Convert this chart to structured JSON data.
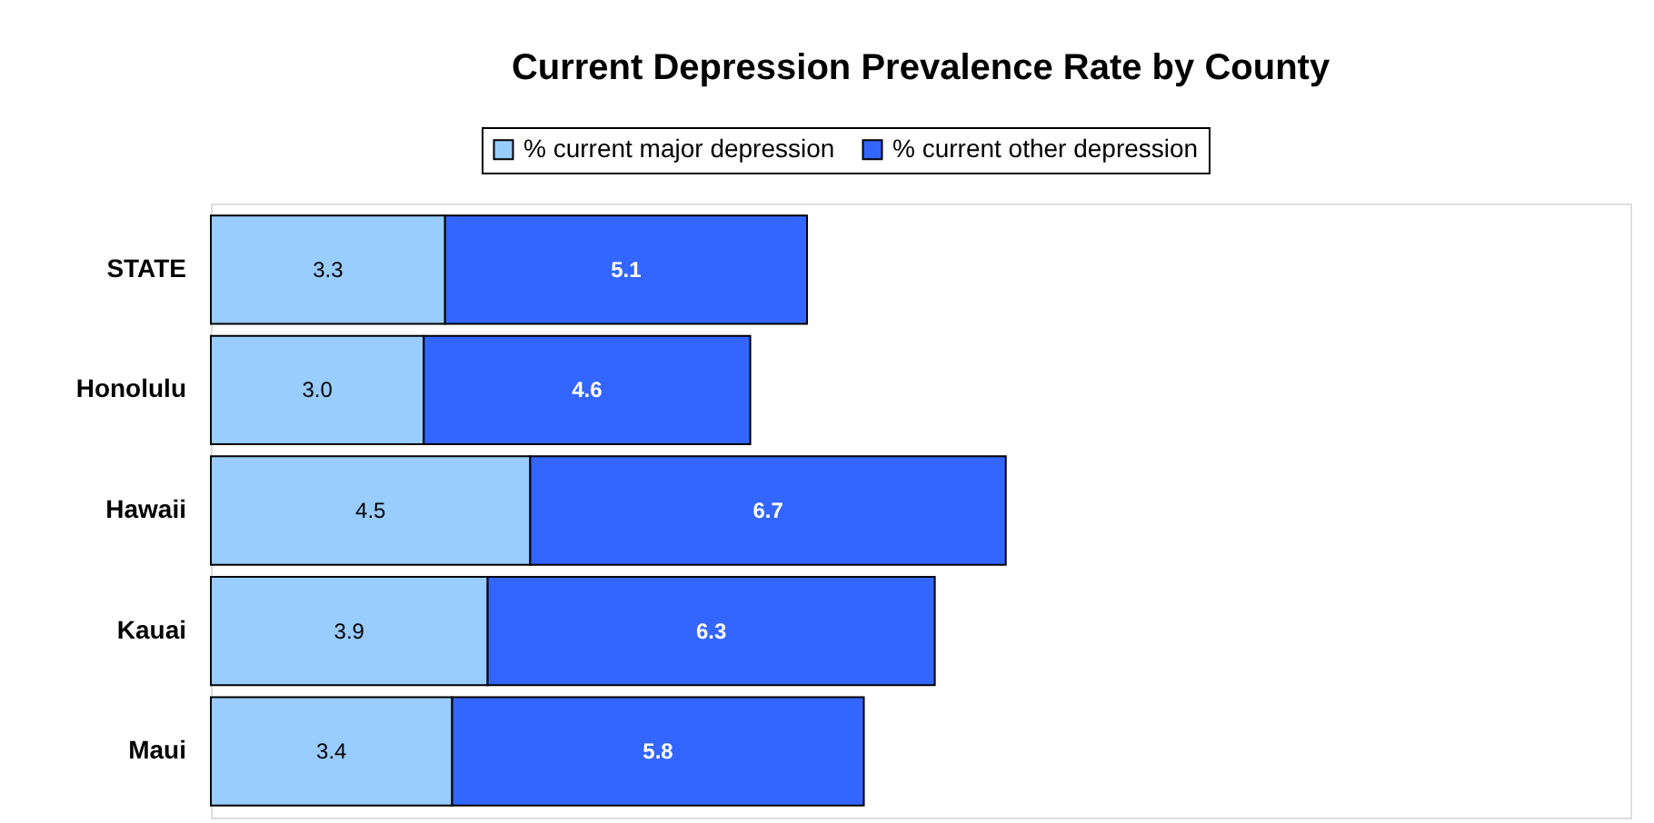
{
  "chart_data": {
    "type": "bar",
    "orientation": "horizontal",
    "stacked": true,
    "title": "Current Depression Prevalence Rate by County",
    "categories": [
      "STATE",
      "Honolulu",
      "Hawaii",
      "Kauai",
      "Maui"
    ],
    "series": [
      {
        "name": "% current major depression",
        "color": "#99ccff",
        "values": [
          3.3,
          3.0,
          4.5,
          3.9,
          3.4
        ],
        "value_labels": [
          "3.3",
          "3.0",
          "4.5",
          "3.9",
          "3.4"
        ]
      },
      {
        "name": "% current other depression",
        "color": "#3366ff",
        "values": [
          5.1,
          4.6,
          6.7,
          6.3,
          5.8
        ],
        "value_labels": [
          "5.1",
          "4.6",
          "6.7",
          "6.3",
          "5.8"
        ]
      }
    ],
    "xlim": [
      0,
      20
    ],
    "tick_labels": "y",
    "legend": "top",
    "grid": false
  }
}
